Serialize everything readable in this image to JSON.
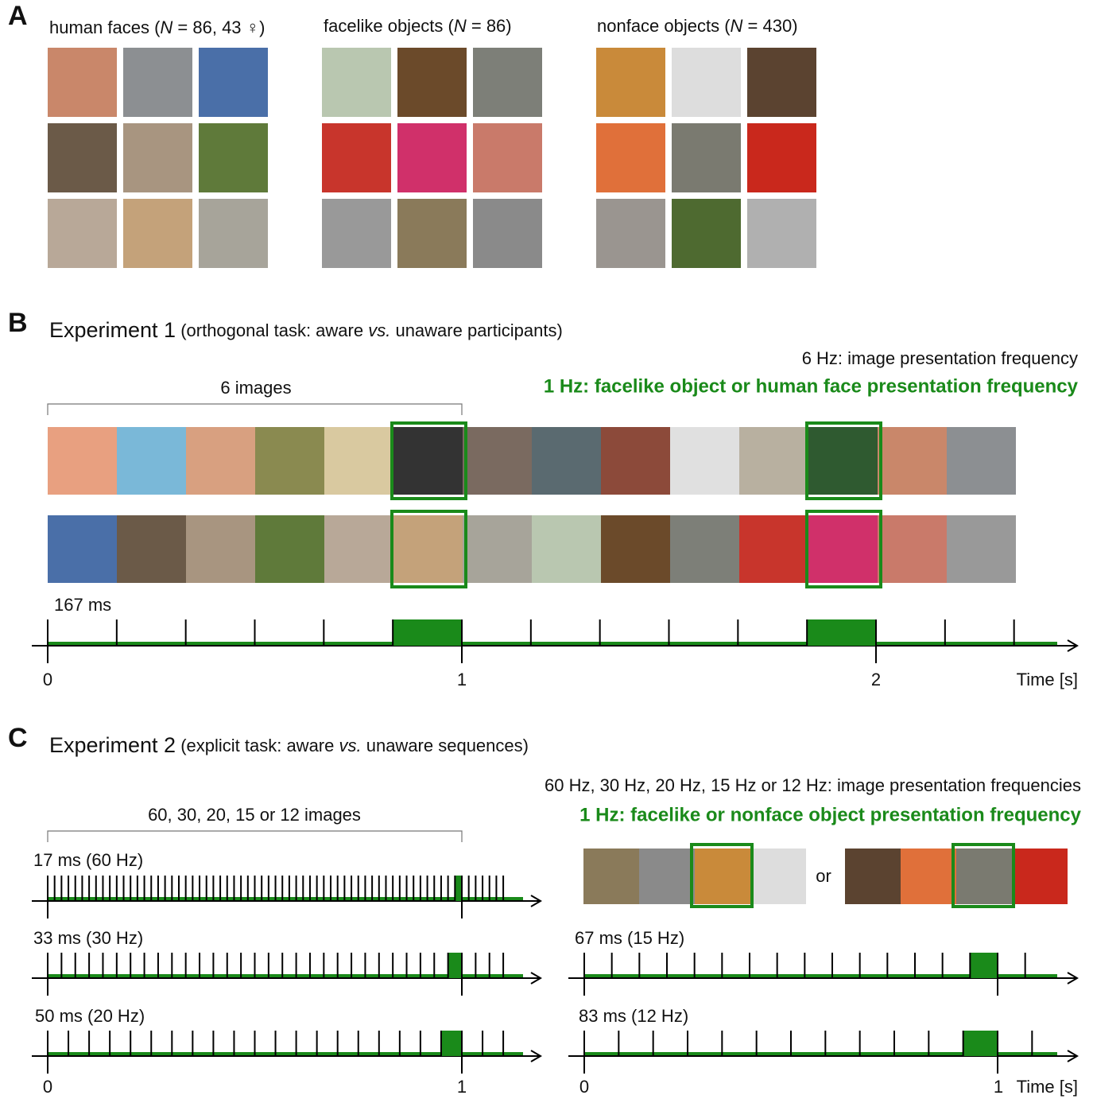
{
  "panel_a": {
    "label": "A",
    "groups": [
      {
        "title_pre": "human faces (",
        "title_italic": "N",
        "title_post": " = 86, 43 ♀)"
      },
      {
        "title_pre": "facelike objects (",
        "title_italic": "N",
        "title_post": " = 86)"
      },
      {
        "title_pre": "nonface objects (",
        "title_italic": "N",
        "title_post": " = 430)"
      }
    ]
  },
  "panel_b": {
    "label": "B",
    "title": "Experiment 1",
    "subtitle_pre": " (orthogonal task: aware ",
    "subtitle_italic": "vs.",
    "subtitle_post": " unaware participants)",
    "base_frequency": "6 Hz: image presentation frequency",
    "oddball_frequency": "1 Hz: facelike object or human face presentation frequency",
    "bracket_label": "6 images",
    "duration": "167 ms",
    "axis_labels": [
      "0",
      "1",
      "2"
    ],
    "axis_title": "Time [s]"
  },
  "panel_c": {
    "label": "C",
    "title": "Experiment 2",
    "subtitle_pre": " (explicit task: aware ",
    "subtitle_italic": "vs.",
    "subtitle_post": " unaware sequences)",
    "base_frequency": "60 Hz, 30 Hz, 20 Hz, 15 Hz or 12 Hz: image presentation frequencies",
    "oddball_frequency": "1 Hz: facelike or nonface object presentation frequency",
    "bracket_label": "60, 30, 20, 15 or 12 images",
    "conditions": [
      "17 ms (60 Hz)",
      "33 ms (30 Hz)",
      "50 ms (20 Hz)",
      "67 ms (15 Hz)",
      "83 ms (12 Hz)"
    ],
    "or": "or",
    "left_axis_labels": [
      "0",
      "1"
    ],
    "right_axis_labels": [
      "0",
      "1"
    ],
    "axis_title": "Time [s]"
  }
}
